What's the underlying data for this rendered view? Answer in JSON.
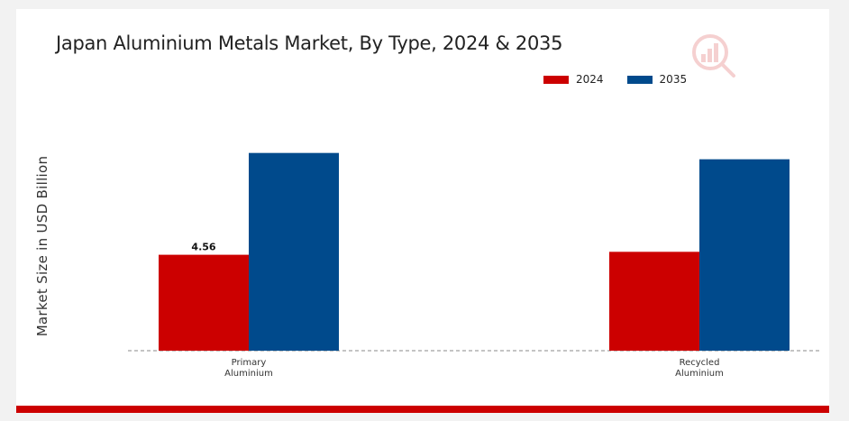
{
  "chart_data": {
    "type": "bar",
    "title": "Japan Aluminium Metals Market, By Type, 2024 & 2035",
    "ylabel": "Market Size in USD Billion",
    "xlabel": "",
    "categories": [
      "Primary Aluminium",
      "Recycled Aluminium"
    ],
    "category_lines": [
      [
        "Primary",
        "Aluminium"
      ],
      [
        "Recycled",
        "Aluminium"
      ]
    ],
    "series": [
      {
        "name": "2024",
        "color": "#cc0000",
        "values": [
          4.56,
          4.7
        ]
      },
      {
        "name": "2035",
        "color": "#004a8c",
        "values": [
          9.4,
          9.1
        ]
      }
    ],
    "data_labels": [
      {
        "series": 0,
        "index": 0,
        "text": "4.56"
      }
    ],
    "ylim": [
      0,
      12
    ],
    "grid": false,
    "legend_position": "top-right",
    "baseline_style": "dashed"
  },
  "theme": {
    "accent_bar": "#cc0000",
    "watermark": "#cc0000"
  }
}
